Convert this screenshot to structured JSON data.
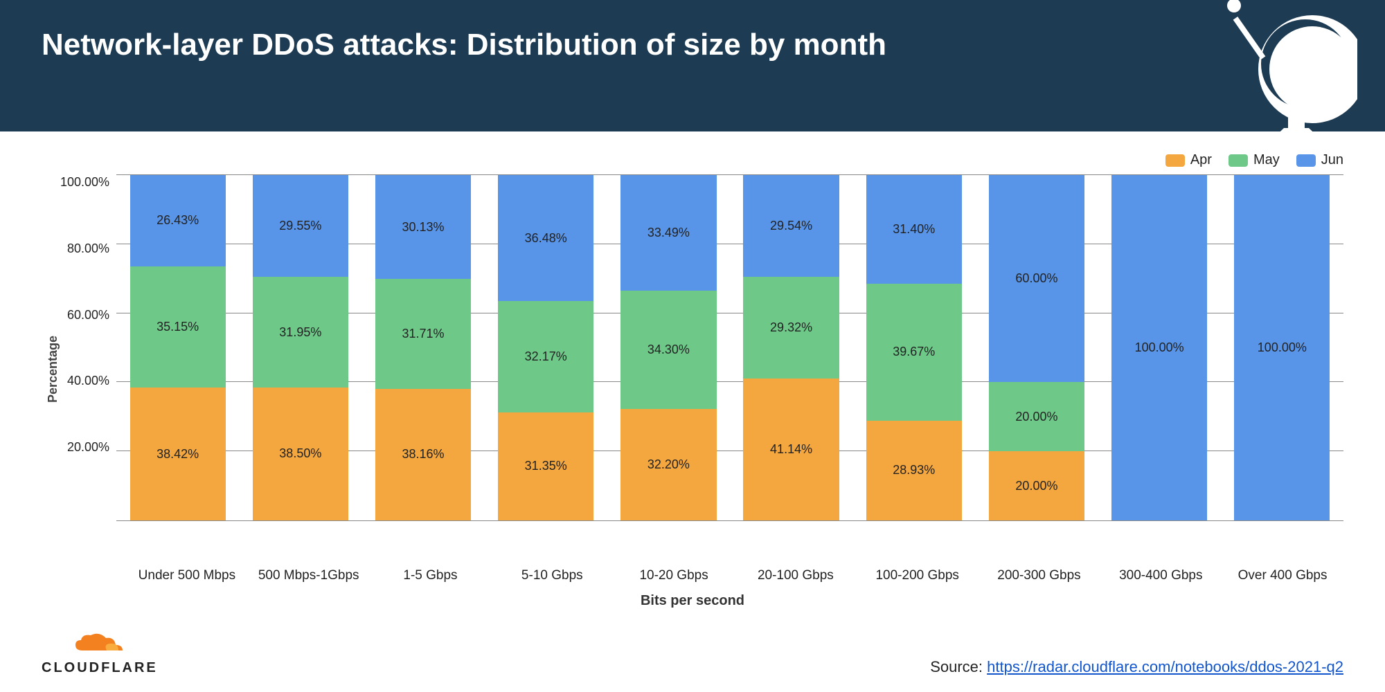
{
  "header": {
    "title": "Network-layer DDoS attacks: Distribution of size by month"
  },
  "chart": {
    "type": "stacked-bar",
    "ylabel": "Percentage",
    "xlabel": "Bits per second",
    "ylim": [
      0,
      100
    ],
    "ytick_step": 20,
    "yticks": [
      "100.00%",
      "80.00%",
      "60.00%",
      "40.00%",
      "20.00%"
    ],
    "categories": [
      "Under 500 Mbps",
      "500 Mbps-1Gbps",
      "1-5 Gbps",
      "5-10 Gbps",
      "10-20 Gbps",
      "20-100 Gbps",
      "100-200 Gbps",
      "200-300 Gbps",
      "300-400 Gbps",
      "Over 400 Gbps"
    ],
    "series": [
      {
        "name": "Apr",
        "color": "#f4a63f"
      },
      {
        "name": "May",
        "color": "#6ec989"
      },
      {
        "name": "Jun",
        "color": "#5895e8"
      }
    ],
    "data": {
      "apr": [
        38.42,
        38.5,
        38.16,
        31.35,
        32.2,
        41.14,
        28.93,
        20.0,
        0,
        0
      ],
      "may": [
        35.15,
        31.95,
        31.71,
        32.17,
        34.3,
        29.32,
        39.67,
        20.0,
        0,
        0
      ],
      "jun": [
        26.43,
        29.55,
        30.13,
        36.48,
        33.49,
        29.54,
        31.4,
        60.0,
        100.0,
        100.0
      ]
    },
    "bar_width": 0.78,
    "background_color": "#ffffff",
    "grid_color": "#888888",
    "label_fontsize": 18,
    "legend_position": "top-right"
  },
  "footer": {
    "brand": "CLOUDFLARE",
    "brand_color": "#f48120",
    "source_label": "Source: ",
    "source_url": "https://radar.cloudflare.com/notebooks/ddos-2021-q2"
  }
}
